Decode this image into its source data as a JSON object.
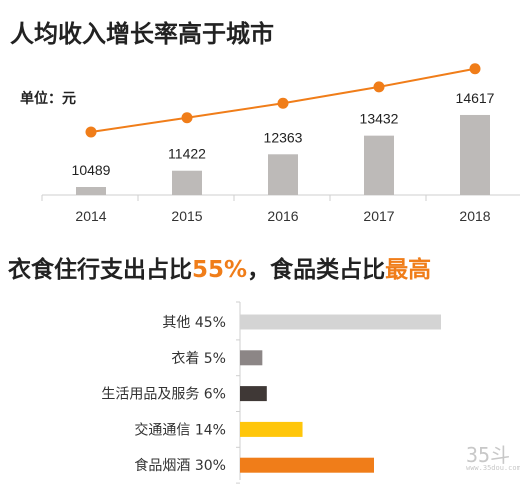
{
  "titles": {
    "top": "人均收入增长率高于城市",
    "bottom_prefix": "衣食住行支出占比",
    "bottom_pct": "55%",
    "bottom_middle": "，食品类占比",
    "bottom_highlight": "最高"
  },
  "unit_label": "单位：元",
  "watermark": {
    "main": "35斗",
    "sub": "www.35dou.com"
  },
  "colors": {
    "line": "#f07d19",
    "bar": "#bdbab8",
    "axis": "#cfcfcf"
  },
  "chart_data": [
    {
      "type": "bar",
      "categories": [
        "2014",
        "2015",
        "2016",
        "2017",
        "2018"
      ],
      "values": [
        10489,
        11422,
        12363,
        13432,
        14617
      ],
      "line_overlay": true,
      "ylim": [
        10000,
        15000
      ]
    },
    {
      "type": "bar",
      "orientation": "horizontal",
      "categories": [
        "其他 45%",
        "衣着 5%",
        "生活用品及服务 6%",
        "交通通信 14%",
        "食品烟酒 30%"
      ],
      "values": [
        45,
        5,
        6,
        14,
        30
      ],
      "colors": [
        "#d4d4d4",
        "#8c8686",
        "#3f3836",
        "#ffc60a",
        "#f07d19"
      ]
    }
  ]
}
